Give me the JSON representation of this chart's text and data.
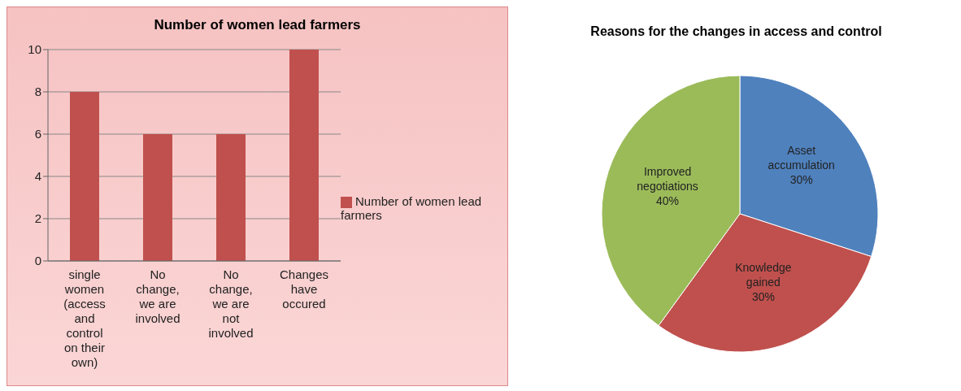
{
  "chart_data": [
    {
      "type": "bar",
      "title": "Number of women lead farmers",
      "categories": [
        "single women (access and control on their own)",
        "No change, we are involved",
        "No change, we are not involved",
        "Changes have occured"
      ],
      "series": [
        {
          "name": "Number of women lead farmers",
          "color": "#c0504d",
          "values": [
            8,
            6,
            6,
            10
          ]
        }
      ],
      "ylim": [
        0,
        10
      ],
      "yticks": [
        0,
        2,
        4,
        6,
        8,
        10
      ],
      "grid": "y",
      "legend": "right"
    },
    {
      "type": "pie",
      "title": "Reasons for the changes in access and control",
      "categories": [
        "Asset accumulation",
        "Knowledge gained",
        "Improved negotiations"
      ],
      "values": [
        30,
        30,
        40
      ],
      "colors": [
        "#4f81bd",
        "#c0504d",
        "#9bbb59"
      ],
      "value_labels": [
        "30%",
        "30%",
        "40%"
      ]
    }
  ]
}
